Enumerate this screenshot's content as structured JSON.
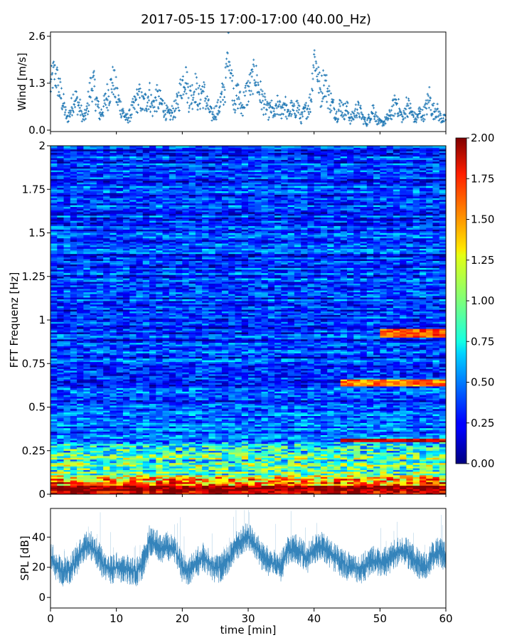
{
  "figure": {
    "title": "2017-05-15 17:00-17:00 (40.00_Hz)"
  },
  "chart_data": [
    {
      "type": "scatter",
      "panel": "wind",
      "title": "",
      "xlabel": "",
      "ylabel": "Wind [m/s]",
      "xlim": [
        0,
        60
      ],
      "ylim": [
        0,
        2.6
      ],
      "yticks": [
        0.0,
        1.3,
        2.6
      ],
      "ytick_labels": [
        "0.0",
        "1.3",
        "2.6"
      ],
      "marker": "+",
      "color": "#1f77b4",
      "series": [
        {
          "x": [
            0.0,
            0.5,
            1.0,
            1.5,
            2.0,
            2.5,
            3.0,
            3.5,
            4.0,
            4.5,
            5.0,
            5.5,
            6.0,
            6.5,
            7.0,
            7.5,
            8.0,
            8.5,
            9.0,
            9.5,
            10.0,
            10.5,
            11.0,
            11.5,
            12.0,
            12.5,
            13.0,
            13.5,
            14.0,
            14.5,
            15.0,
            15.5,
            16.0,
            16.5,
            17.0,
            17.5,
            18.0,
            18.5,
            19.0,
            19.5,
            20.0,
            20.5,
            21.0,
            21.5,
            22.0,
            22.5,
            23.0,
            23.5,
            24.0,
            24.5,
            25.0,
            25.5,
            26.0,
            26.5,
            27.0,
            27.5,
            28.0,
            28.5,
            29.0,
            29.5,
            30.0,
            30.5,
            31.0,
            31.5,
            32.0,
            32.5,
            33.0,
            33.5,
            34.0,
            34.5,
            35.0,
            35.5,
            36.0,
            36.5,
            37.0,
            37.5,
            38.0,
            38.5,
            39.0,
            39.5,
            40.0,
            40.5,
            41.0,
            41.5,
            42.0,
            42.5,
            43.0,
            43.5,
            44.0,
            44.5,
            45.0,
            45.5,
            46.0,
            46.5,
            47.0,
            47.5,
            48.0,
            48.5,
            49.0,
            49.5,
            50.0,
            50.5,
            51.0,
            51.5,
            52.0,
            52.5,
            53.0,
            53.5,
            54.0,
            54.5,
            55.0,
            55.5,
            56.0,
            56.5,
            57.0,
            57.5,
            58.0,
            58.5,
            59.0,
            59.5
          ],
          "values": [
            1.2,
            1.6,
            1.4,
            1.0,
            0.7,
            0.3,
            0.5,
            0.9,
            0.8,
            0.6,
            0.3,
            0.5,
            1.1,
            1.3,
            0.8,
            0.4,
            0.6,
            0.9,
            1.1,
            1.4,
            1.0,
            0.7,
            0.5,
            0.3,
            0.4,
            0.6,
            0.8,
            0.9,
            0.7,
            0.8,
            1.0,
            0.6,
            0.9,
            0.8,
            0.7,
            0.5,
            0.4,
            0.5,
            0.6,
            0.9,
            1.3,
            1.5,
            0.9,
            1.0,
            1.2,
            0.8,
            1.1,
            0.9,
            0.6,
            0.4,
            0.5,
            0.6,
            0.9,
            1.2,
            2.3,
            1.4,
            0.8,
            1.0,
            0.6,
            0.9,
            1.1,
            1.3,
            1.6,
            1.2,
            0.9,
            0.7,
            0.5,
            0.6,
            0.4,
            0.7,
            0.5,
            0.8,
            0.4,
            0.6,
            0.5,
            0.7,
            0.3,
            0.5,
            0.6,
            0.8,
            2.1,
            1.6,
            1.0,
            1.4,
            1.1,
            0.8,
            0.6,
            0.4,
            0.7,
            0.5,
            0.6,
            0.3,
            0.4,
            0.6,
            0.5,
            0.3,
            0.2,
            0.4,
            0.6,
            0.3,
            0.2,
            0.2,
            0.3,
            0.4,
            0.6,
            0.8,
            0.5,
            0.3,
            0.7,
            0.6,
            0.4,
            0.3,
            0.5,
            0.4,
            0.6,
            0.9,
            0.5,
            0.6,
            0.4,
            0.3
          ]
        }
      ]
    },
    {
      "type": "heatmap",
      "panel": "spectrogram",
      "title": "",
      "xlabel": "",
      "ylabel": "FFT Frequenz [Hz]",
      "xlim": [
        0,
        60
      ],
      "ylim": [
        0,
        2
      ],
      "yticks": [
        0,
        0.25,
        0.5,
        0.75,
        1,
        1.25,
        1.5,
        1.75,
        2
      ],
      "ytick_labels": [
        "0",
        "0.25",
        "0.5",
        "0.75",
        "1",
        "1.25",
        "1.5",
        "1.75",
        "2"
      ],
      "colormap": "jet",
      "colorbar": {
        "range": [
          0,
          2
        ],
        "ticks": [
          "0.00",
          "0.25",
          "0.50",
          "0.75",
          "1.00",
          "1.25",
          "1.50",
          "1.75",
          "2.00"
        ]
      },
      "features": [
        {
          "description_values": "strong energy near 0-0.1 Hz",
          "freq_range": [
            0,
            0.1
          ],
          "level": 1.9
        },
        {
          "freq_range": [
            0.1,
            0.3
          ],
          "level": 0.9
        },
        {
          "freq_range": [
            0.3,
            2.0
          ],
          "level": 0.35
        },
        {
          "x_range": [
            44,
            60
          ],
          "freq_range": [
            0.3,
            0.32
          ],
          "level": 1.8
        },
        {
          "x_range": [
            44,
            60
          ],
          "freq_range": [
            0.62,
            0.66
          ],
          "level": 1.5
        },
        {
          "x_range": [
            50,
            60
          ],
          "freq_range": [
            0.9,
            0.95
          ],
          "level": 1.6
        }
      ]
    },
    {
      "type": "line",
      "panel": "spl",
      "title": "",
      "xlabel": "time [min]",
      "ylabel": "SPL [dB]",
      "xlim": [
        0,
        60
      ],
      "ylim": [
        -7,
        59
      ],
      "xticks": [
        0,
        10,
        20,
        30,
        40,
        50,
        60
      ],
      "xtick_labels": [
        "0",
        "10",
        "20",
        "30",
        "40",
        "50",
        "60"
      ],
      "yticks": [
        0,
        20,
        40
      ],
      "ytick_labels": [
        "0",
        "20",
        "40"
      ],
      "color": "#1f77b4",
      "series": [
        {
          "x": [
            0,
            1,
            2,
            3,
            4,
            5,
            6,
            7,
            8,
            9,
            10,
            11,
            12,
            13,
            14,
            15,
            16,
            17,
            18,
            19,
            20,
            21,
            22,
            23,
            24,
            25,
            26,
            27,
            28,
            29,
            30,
            31,
            32,
            33,
            34,
            35,
            36,
            37,
            38,
            39,
            40,
            41,
            42,
            43,
            44,
            45,
            46,
            47,
            48,
            49,
            50,
            51,
            52,
            53,
            54,
            55,
            56,
            57,
            58,
            59,
            60
          ],
          "values": [
            28,
            20,
            17,
            19,
            25,
            33,
            35,
            30,
            22,
            18,
            20,
            19,
            18,
            17,
            22,
            38,
            36,
            32,
            34,
            31,
            20,
            18,
            22,
            27,
            24,
            19,
            20,
            26,
            33,
            38,
            40,
            35,
            28,
            24,
            22,
            20,
            31,
            33,
            30,
            26,
            32,
            34,
            31,
            27,
            24,
            21,
            20,
            18,
            22,
            25,
            23,
            24,
            28,
            31,
            30,
            26,
            22,
            20,
            28,
            30,
            27
          ],
          "spread": 10
        }
      ]
    }
  ]
}
